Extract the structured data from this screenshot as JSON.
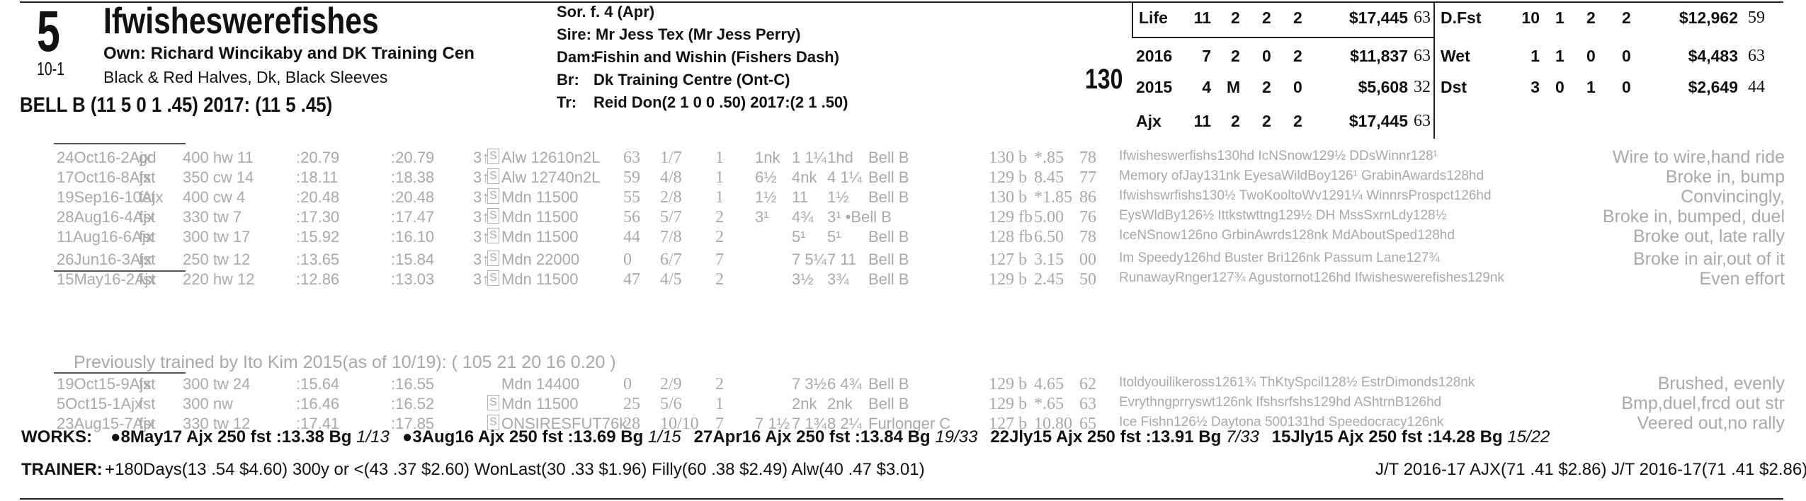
{
  "header": {
    "program_number": "5",
    "odds": "10-1",
    "horse_name": "Ifwisheswerefishes",
    "owner": "Own: Richard Wincikaby and DK Training Cen",
    "silks": "Black & Red Halves, Dk, Black Sleeves",
    "jockey": "BELL B (11 5 0 1 .45) 2017: (11 5 .45)",
    "sex_age": "Sor. f. 4 (Apr)",
    "sire": "Sire: Mr Jess Tex (Mr Jess Perry)",
    "dam_label": "Dam:",
    "dam": "Fishin and Wishin (Fishers Dash)",
    "breeder_label": "Br:",
    "breeder": "Dk Training Centre (Ont-C)",
    "trainer_label": "Tr:",
    "trainer": "Reid Don(2 1 0 0 .50)  2017:(2 1 .50)",
    "weight": "130"
  },
  "stats_left": [
    {
      "label": "Life",
      "starts": "11",
      "w": "2",
      "p": "2",
      "s": "2",
      "earn": "$17,445",
      "fig": "63"
    },
    {
      "label": "2016",
      "starts": "7",
      "w": "2",
      "p": "0",
      "s": "2",
      "earn": "$11,837",
      "fig": "63"
    },
    {
      "label": "2015",
      "starts": "4",
      "w": "M",
      "p": "2",
      "s": "0",
      "earn": "$5,608",
      "fig": "32"
    },
    {
      "label": "Ajx",
      "starts": "11",
      "w": "2",
      "p": "2",
      "s": "2",
      "earn": "$17,445",
      "fig": "63"
    }
  ],
  "stats_right": [
    {
      "label": "D.Fst",
      "starts": "10",
      "w": "1",
      "p": "2",
      "s": "2",
      "earn": "$12,962",
      "fig": "59"
    },
    {
      "label": "Wet",
      "starts": "1",
      "w": "1",
      "p": "0",
      "s": "0",
      "earn": "$4,483",
      "fig": "63"
    },
    {
      "label": "Dst",
      "starts": "3",
      "w": "0",
      "p": "1",
      "s": "0",
      "earn": "$2,649",
      "fig": "44"
    }
  ],
  "past_performances": [
    {
      "date": "24Oct16-2Ajx",
      "cond": "gd",
      "dist": "400 hw 11",
      "f1": ":20.79",
      "f2": ":20.79",
      "age": "3↑",
      "s": "S",
      "race": "Alw 12610n2L",
      "speed": "63",
      "pp": "1/7",
      "st": "1",
      "c1": "1nk",
      "c2": "1 1¼",
      "fin": "1hd",
      "jockey": "Bell B",
      "wt": "130 b",
      "odds": "*.85",
      "fig": "78",
      "comp": "Ifwisheswerfishs130hd IcNSnow129½ DDsWinnr128¹",
      "comment": "Wire to wire,hand ride"
    },
    {
      "date": "17Oct16-8Ajx",
      "cond": "fst",
      "dist": "350 cw 14",
      "f1": ":18.11",
      "f2": ":18.38",
      "age": "3↑",
      "s": "S",
      "race": "Alw 12740n2L",
      "speed": "59",
      "pp": "4/8",
      "st": "1",
      "c1": "6½",
      "c2": "4nk",
      "fin": "4 1¼",
      "jockey": "Bell B",
      "wt": "129 b",
      "odds": "8.45",
      "fig": "77",
      "comp": "Memory ofJay131nk EyesaWildBoy126¹ GrabinAwards128hd",
      "comment": "Broke in, bump"
    },
    {
      "date": "19Sep16-10Ajx",
      "cond": "fst",
      "dist": "400 cw 4",
      "f1": ":20.48",
      "f2": ":20.48",
      "age": "3↑",
      "s": "S",
      "race": "Mdn 11500",
      "speed": "55",
      "pp": "2/8",
      "st": "1",
      "c1": "1½",
      "c2": "11",
      "fin": "1½",
      "jockey": "Bell B",
      "wt": "130 b",
      "odds": "*1.85",
      "fig": "86",
      "comp": "Ifwishswrfishs130½ TwoKooltoWv1291¼ WinnrsProspct126hd",
      "comment": "Convincingly,"
    },
    {
      "date": "28Aug16-4Ajx",
      "cond": "fst",
      "dist": "330 tw 7",
      "f1": ":17.30",
      "f2": ":17.47",
      "age": "3↑",
      "s": "S",
      "race": "Mdn 11500",
      "speed": "56",
      "pp": "5/7",
      "st": "2",
      "c1": "3¹",
      "c2": "4¾",
      "fin": "3¹ •Bell B",
      "jockey": "",
      "wt": "129 fb",
      "odds": "5.00",
      "fig": "76",
      "comp": "EysWldBy126½ Ittkstwttng129½ DH MssSxrnLdy128½",
      "comment": "Broke in, bumped, duel"
    },
    {
      "date": "11Aug16-6Ajx",
      "cond": "fst",
      "dist": "300 tw 17",
      "f1": ":15.92",
      "f2": ":16.10",
      "age": "3↑",
      "s": "S",
      "race": "Mdn 11500",
      "speed": "44",
      "pp": "7/8",
      "st": "2",
      "c1": "",
      "c2": "5¹",
      "fin": "5¹",
      "jockey": "Bell B",
      "wt": "128 fb",
      "odds": "6.50",
      "fig": "78",
      "comp": "IceNSnow126no GrbinAwrds128nk MdAboutSped128hd",
      "comment": "Broke out, late rally"
    },
    {
      "date": "26Jun16-3Ajx",
      "cond": "fst",
      "dist": "250 tw 12",
      "f1": ":13.65",
      "f2": ":15.84",
      "age": "3↑",
      "s": "S",
      "race": "Mdn 22000",
      "speed": "0",
      "pp": "6/7",
      "st": "7",
      "c1": "",
      "c2": "7 5¼",
      "fin": "7 11",
      "jockey": "Bell B",
      "wt": "127 b",
      "odds": "3.15",
      "fig": "00",
      "comp": "Im Speedy126hd Buster Bri126nk Passum Lane127¾",
      "comment": "Broke in air,out of it"
    },
    {
      "date": "15May16-2Ajx",
      "cond": "fst",
      "dist": "220 hw 12",
      "f1": ":12.86",
      "f2": ":13.03",
      "age": "3↑",
      "s": "S",
      "race": "Mdn 11500",
      "speed": "47",
      "pp": "4/5",
      "st": "2",
      "c1": "",
      "c2": "3½",
      "fin": "3¾",
      "jockey": "Bell B",
      "wt": "129 b",
      "odds": "2.45",
      "fig": "50",
      "comp": "RunawayRnger127¾ Agustornot126hd Ifwisheswerefishes129nk",
      "comment": "Even effort"
    },
    {
      "date": "19Oct15-9Ajx",
      "cond": "fst",
      "dist": "300 tw 24",
      "f1": ":15.64",
      "f2": ":16.55",
      "age": "",
      "s": "",
      "race": "Mdn 14400",
      "speed": "0",
      "pp": "2/9",
      "st": "2",
      "c1": "",
      "c2": "7 3½",
      "fin": "6 4¾",
      "jockey": "Bell B",
      "wt": "129 b",
      "odds": "4.65",
      "fig": "62",
      "comp": "Itoldyouilikeross1261¾ ThKtySpcil128½ EstrDimonds128nk",
      "comment": "Brushed, evenly"
    },
    {
      "date": "5Oct15-1Ajx",
      "cond": "fst",
      "dist": "300 nw",
      "f1": ":16.46",
      "f2": ":16.52",
      "age": "",
      "s": "S",
      "race": "Mdn 11500",
      "speed": "25",
      "pp": "5/6",
      "st": "1",
      "c1": "",
      "c2": "2nk",
      "fin": "2nk",
      "jockey": "Bell B",
      "wt": "129 b",
      "odds": "*.65",
      "fig": "63",
      "comp": "Evrythngprryswt126nk Ifshsrfshs129hd AShtrnB126hd",
      "comment": "Bmp,duel,frcd out str"
    },
    {
      "date": "23Aug15-7Ajx",
      "cond": "fst",
      "dist": "330 tw 12",
      "f1": ":17.41",
      "f2": ":17.85",
      "age": "",
      "s": "S",
      "race": "ONSIRESFUT76k",
      "speed": "28",
      "pp": "10/10",
      "st": "7",
      "c1": "7 1½",
      "c2": "7 1¾",
      "fin": "8 2¼",
      "jockey": "Furlonger C",
      "wt": "127 b",
      "odds": "10.80",
      "fig": "65",
      "comp": "Ice Fishn126½ Daytona 500131hd Speedocracy126nk",
      "comment": "Veered out,no rally"
    }
  ],
  "trainer_change_note": "Previously trained by Ito Kim 2015(as of 10/19): ( 105 21 20 16 0.20 )",
  "works": {
    "label": "WORKS:",
    "items": [
      {
        "bullet": "●",
        "date": "8May17",
        "track": "Ajx",
        "dist": "250",
        "cond": "fst",
        "time": ":13.38",
        "type": "Bg",
        "rank": "1/13"
      },
      {
        "bullet": "●",
        "date": "3Aug16",
        "track": "Ajx",
        "dist": "250",
        "cond": "fst",
        "time": ":13.69",
        "type": "Bg",
        "rank": "1/15"
      },
      {
        "bullet": "",
        "date": "27Apr16",
        "track": "Ajx",
        "dist": "250",
        "cond": "fst",
        "time": ":13.84",
        "type": "Bg",
        "rank": "19/33"
      },
      {
        "bullet": "",
        "date": "22Jly15",
        "track": "Ajx",
        "dist": "250",
        "cond": "fst",
        "time": ":13.91",
        "type": "Bg",
        "rank": "7/33"
      },
      {
        "bullet": "",
        "date": "15Jly15",
        "track": "Ajx",
        "dist": "250",
        "cond": "fst",
        "time": ":14.28",
        "type": "Bg",
        "rank": "15/22"
      }
    ]
  },
  "trainer_stats": {
    "label": "TRAINER:",
    "text": "+180Days(13 .54 $4.60) 300y or <(43 .37 $2.60) WonLast(30 .33 $1.96) Filly(60 .38 $2.49) Alw(40 .47 $3.01)",
    "jt": "J/T 2016-17 AJX(71 .41 $2.86)  J/T 2016-17(71 .41 $2.86)"
  }
}
